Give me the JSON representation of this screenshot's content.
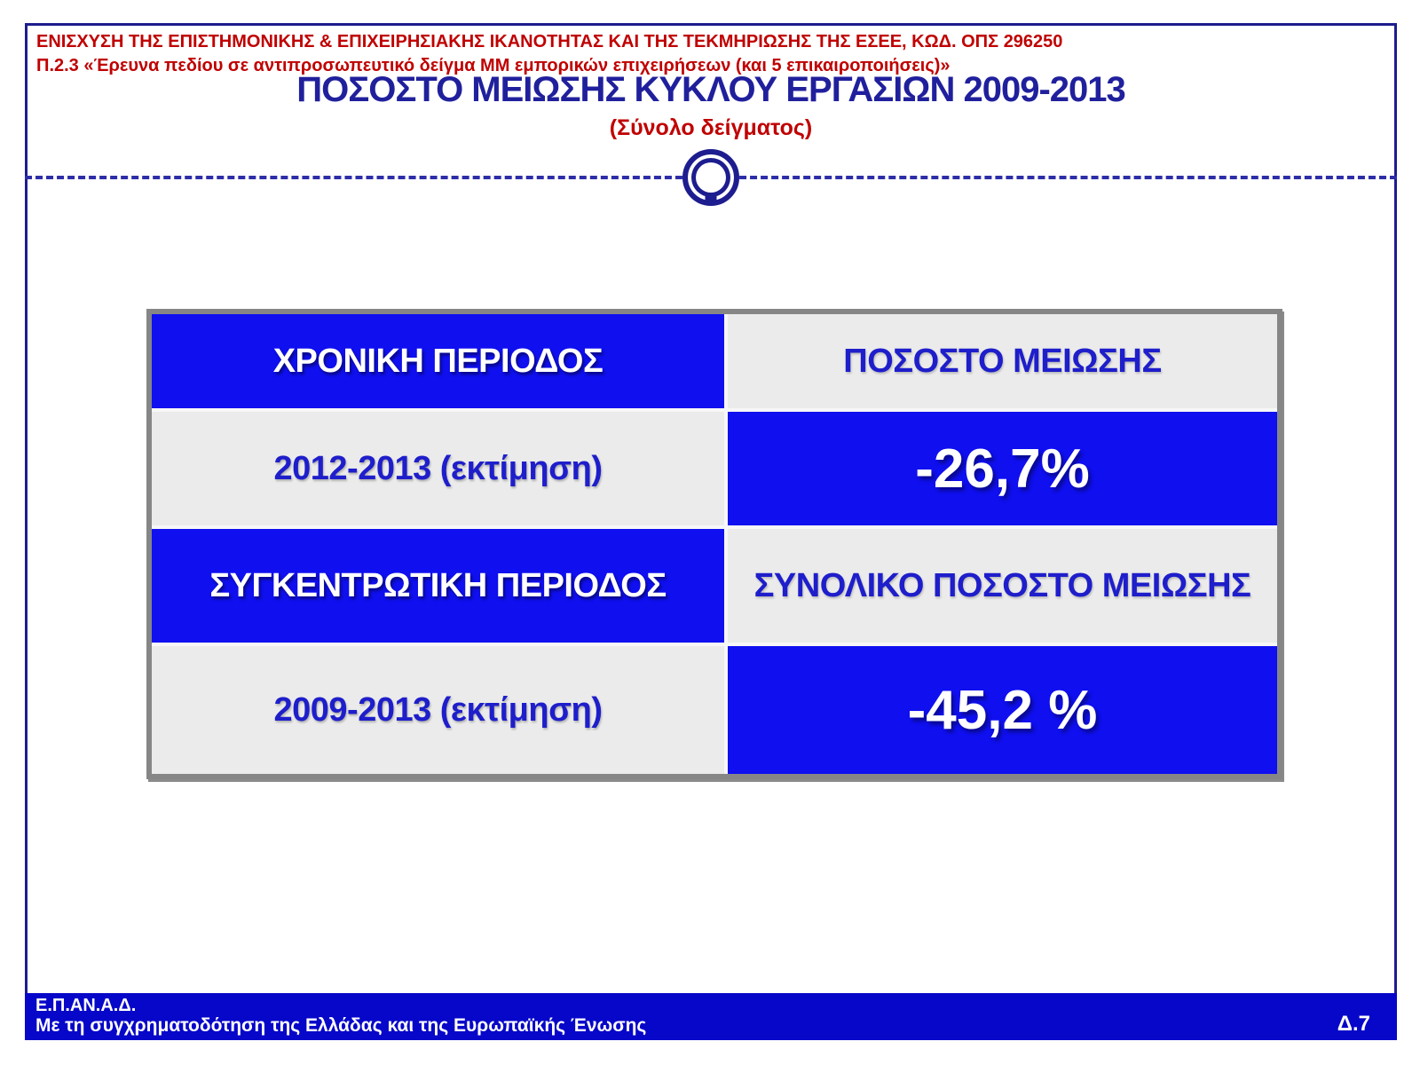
{
  "colors": {
    "frame_navy": "#1d1d8f",
    "title_navy": "#20209d",
    "header_red": "#c00000",
    "table_blue": "#0f0ff0",
    "cell_gray": "#ebebeb",
    "cell_text_blue": "#1e1ecb",
    "table_border_gray": "#868686",
    "footer_blue": "#0707c9"
  },
  "header": {
    "line1": "ΕΝΙΣΧΥΣΗ ΤΗΣ ΕΠΙΣΤΗΜΟΝΙΚΗΣ & ΕΠΙΧΕΙΡΗΣΙΑΚΗΣ ΙΚΑΝΟΤΗΤΑΣ ΚΑΙ ΤΗΣ ΤΕΚΜΗΡΙΩΣΗΣ ΤΗΣ ΕΣΕΕ, ΚΩΔ. ΟΠΣ 296250",
    "line2": "Π.2.3 «Έρευνα πεδίου σε αντιπροσωπευτικό δείγμα ΜΜ εμπορικών επιχειρήσεων (και 5 επικαιροποιήσεις)»"
  },
  "title": "ΠΟΣΟΣΤΟ ΜΕΙΩΣΗΣ ΚΥΚΛΟΥ ΕΡΓΑΣΙΩΝ 2009-2013",
  "subtitle": "(Σύνολο δείγματος)",
  "logo_name": "double-ring-circle-logo",
  "table": {
    "col1_header": "ΧΡΟΝΙΚΗ ΠΕΡΙΟΔΟΣ",
    "col2_header": "ΠΟΣΟΣΤΟ ΜΕΙΩΣΗΣ",
    "row1_period": "2012-2013 (εκτίμηση)",
    "row1_value": "-26,7%",
    "section2_col1": "ΣΥΓΚΕΝΤΡΩΤΙΚΗ ΠΕΡΙΟΔΟΣ",
    "section2_col2": "ΣΥΝΟΛΙΚΟ ΠΟΣΟΣΤΟ ΜΕΙΩΣΗΣ",
    "row2_period": "2009-2013 (εκτίμηση)",
    "row2_value": "-45,2 %"
  },
  "footer": {
    "program": "Ε.Π.ΑΝ.Α.Δ.",
    "cofinance": "Με τη συγχρηματοδότηση της Ελλάδας και της Ευρωπαϊκής Ένωσης",
    "page_ref": "Δ.7"
  },
  "chart_data": {
    "type": "table",
    "title": "ΠΟΣΟΣΤΟ ΜΕΙΩΣΗΣ ΚΥΚΛΟΥ ΕΡΓΑΣΙΩΝ 2009-2013",
    "subtitle": "(Σύνολο δείγματος)",
    "columns": [
      "ΧΡΟΝΙΚΗ ΠΕΡΙΟΔΟΣ",
      "ΠΟΣΟΣΤΟ ΜΕΙΩΣΗΣ"
    ],
    "rows": [
      [
        "2012-2013 (εκτίμηση)",
        "-26,7%"
      ],
      [
        "ΣΥΓΚΕΝΤΡΩΤΙΚΗ ΠΕΡΙΟΔΟΣ",
        "ΣΥΝΟΛΙΚΟ ΠΟΣΟΣΤΟ ΜΕΙΩΣΗΣ"
      ],
      [
        "2009-2013 (εκτίμηση)",
        "-45,2 %"
      ]
    ],
    "values_numeric": [
      {
        "period": "2012-2013",
        "reduction_pct": -26.7
      },
      {
        "period": "2009-2013",
        "reduction_pct": -45.2
      }
    ]
  }
}
